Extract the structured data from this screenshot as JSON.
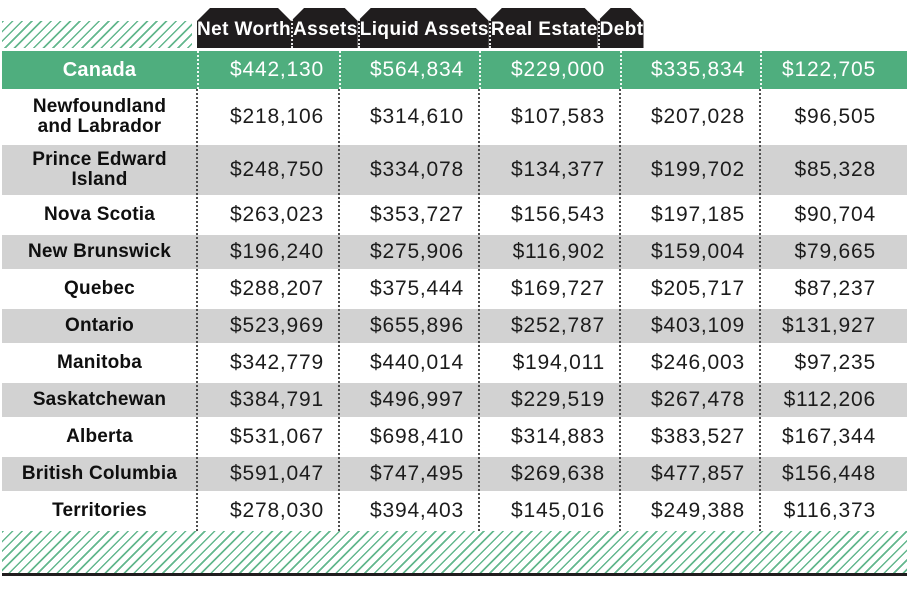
{
  "chart_data": {
    "type": "table",
    "columns": [
      "Net Worth",
      "Assets",
      "Liquid Assets",
      "Real Estate",
      "Debt"
    ],
    "rows": [
      {
        "label": "Canada",
        "highlight": true,
        "values": [
          442130,
          564834,
          229000,
          335834,
          122705
        ]
      },
      {
        "label": "Newfoundland and Labrador",
        "values": [
          218106,
          314610,
          107583,
          207028,
          96505
        ]
      },
      {
        "label": "Prince Edward Island",
        "values": [
          248750,
          334078,
          134377,
          199702,
          85328
        ]
      },
      {
        "label": "Nova Scotia",
        "values": [
          263023,
          353727,
          156543,
          197185,
          90704
        ]
      },
      {
        "label": "New Brunswick",
        "values": [
          196240,
          275906,
          116902,
          159004,
          79665
        ]
      },
      {
        "label": "Quebec",
        "values": [
          288207,
          375444,
          169727,
          205717,
          87237
        ]
      },
      {
        "label": "Ontario",
        "values": [
          523969,
          655896,
          252787,
          403109,
          131927
        ]
      },
      {
        "label": "Manitoba",
        "values": [
          342779,
          440014,
          194011,
          246003,
          97235
        ]
      },
      {
        "label": "Saskatchewan",
        "values": [
          384791,
          496997,
          229519,
          267478,
          112206
        ]
      },
      {
        "label": "Alberta",
        "values": [
          531067,
          698410,
          314883,
          383527,
          167344
        ]
      },
      {
        "label": "British Columbia",
        "values": [
          591047,
          747495,
          269638,
          477857,
          156448
        ]
      },
      {
        "label": "Territories",
        "values": [
          278030,
          394403,
          145016,
          249388,
          116373
        ]
      }
    ],
    "value_format": "$#,###",
    "layout": {
      "grid": "dotted column separators",
      "legend_position": "none"
    }
  },
  "colors": {
    "accent_green": "#4fae7e",
    "header_black": "#201d1e",
    "row_gray": "#d2d2d2",
    "hatch_green": "#63b78d",
    "number_text": "#1c1c1c"
  }
}
